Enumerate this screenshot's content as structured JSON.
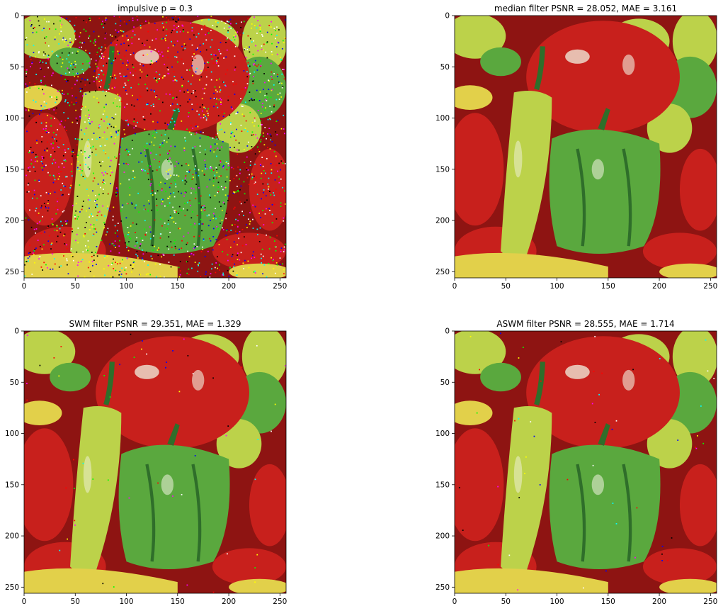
{
  "figure": {
    "layout": "2x2 image grid",
    "background": "#ffffff"
  },
  "chart_data": [
    {
      "type": "image",
      "title": "impulsive p = 0.3",
      "xlim": [
        0,
        256
      ],
      "ylim": [
        256,
        0
      ],
      "xticks": [
        0,
        50,
        100,
        150,
        200,
        250
      ],
      "yticks": [
        0,
        50,
        100,
        150,
        200,
        250
      ],
      "noise": "heavy"
    },
    {
      "type": "image",
      "title": "median filter PSNR = 28.052, MAE = 3.161",
      "xlim": [
        0,
        256
      ],
      "ylim": [
        256,
        0
      ],
      "xticks": [
        0,
        50,
        100,
        150,
        200,
        250
      ],
      "yticks": [
        0,
        50,
        100,
        150,
        200,
        250
      ],
      "noise": "none"
    },
    {
      "type": "image",
      "title": "SWM filter PSNR = 29.351, MAE = 1.329",
      "xlim": [
        0,
        256
      ],
      "ylim": [
        256,
        0
      ],
      "xticks": [
        0,
        50,
        100,
        150,
        200,
        250
      ],
      "yticks": [
        0,
        50,
        100,
        150,
        200,
        250
      ],
      "noise": "slight"
    },
    {
      "type": "image",
      "title": "ASWM filter PSNR = 28.555, MAE = 1.714",
      "xlim": [
        0,
        256
      ],
      "ylim": [
        256,
        0
      ],
      "xticks": [
        0,
        50,
        100,
        150,
        200,
        250
      ],
      "yticks": [
        0,
        50,
        100,
        150,
        200,
        250
      ],
      "noise": "slight"
    }
  ],
  "image_content": {
    "subject": "peppers",
    "colors": {
      "red": "#c8201c",
      "red_dark": "#8e1412",
      "green": "#5aa83e",
      "green_dark": "#2f6e2a",
      "yellow_green": "#bcd24a",
      "yellow": "#e2d04a",
      "highlight": "#f2f2e0"
    },
    "noise_colors": [
      "#ff0000",
      "#00ff00",
      "#0000ff",
      "#ffff00",
      "#ff00ff",
      "#00ffff",
      "#ffffff",
      "#000000"
    ]
  }
}
